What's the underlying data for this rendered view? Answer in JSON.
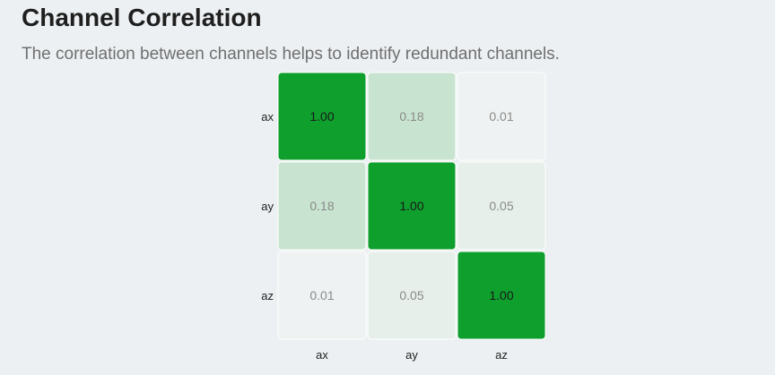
{
  "header": {
    "title": "Channel Correlation",
    "subtitle": "The correlation between channels helps to identify redundant channels."
  },
  "colors": {
    "background": "#ecf0f2",
    "cell_high": "#0e9f2d",
    "cell_low": "#f1f3f4",
    "cell_border": "#ffffff",
    "text_dark": "#1a1a1a",
    "text_muted": "#8a8a8a"
  },
  "chart_data": {
    "type": "heatmap",
    "rows": [
      "ax",
      "ay",
      "az"
    ],
    "columns": [
      "ax",
      "ay",
      "az"
    ],
    "values": [
      [
        1.0,
        0.18,
        0.01
      ],
      [
        0.18,
        1.0,
        0.05
      ],
      [
        0.01,
        0.05,
        1.0
      ]
    ],
    "value_labels": [
      [
        "1.00",
        "0.18",
        "0.01"
      ],
      [
        "0.18",
        "1.00",
        "0.05"
      ],
      [
        "0.01",
        "0.05",
        "1.00"
      ]
    ],
    "range": [
      0,
      1
    ]
  }
}
